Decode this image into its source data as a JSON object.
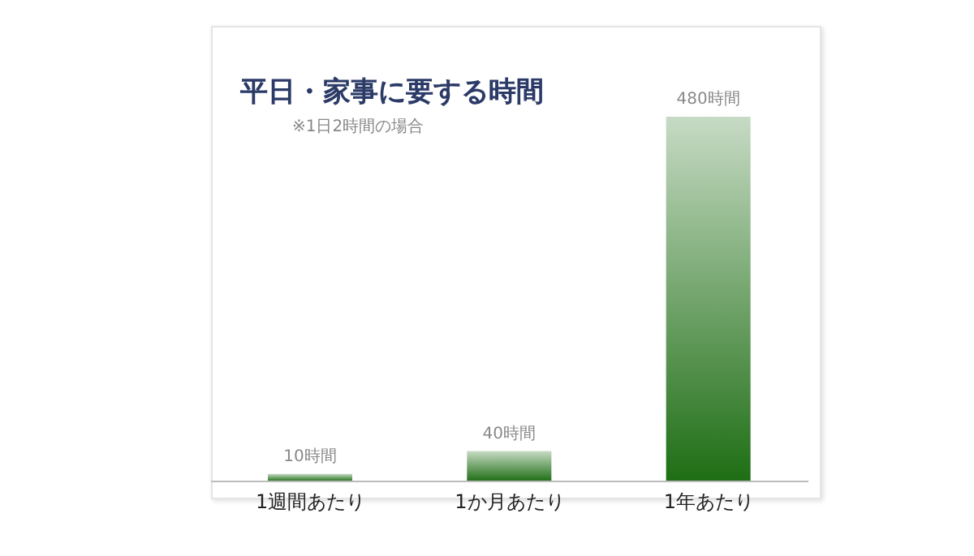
{
  "chart_data": {
    "type": "bar",
    "title": "平日・家事に要する時間",
    "subtitle": "※1日2時間の場合",
    "categories": [
      "1週間あたり",
      "1か月あたり",
      "1年あたり"
    ],
    "values": [
      10,
      40,
      480
    ],
    "value_labels": [
      "10時間",
      "40時間",
      "480時間"
    ],
    "color": "#1e6e14",
    "grid": false,
    "legend": false
  }
}
